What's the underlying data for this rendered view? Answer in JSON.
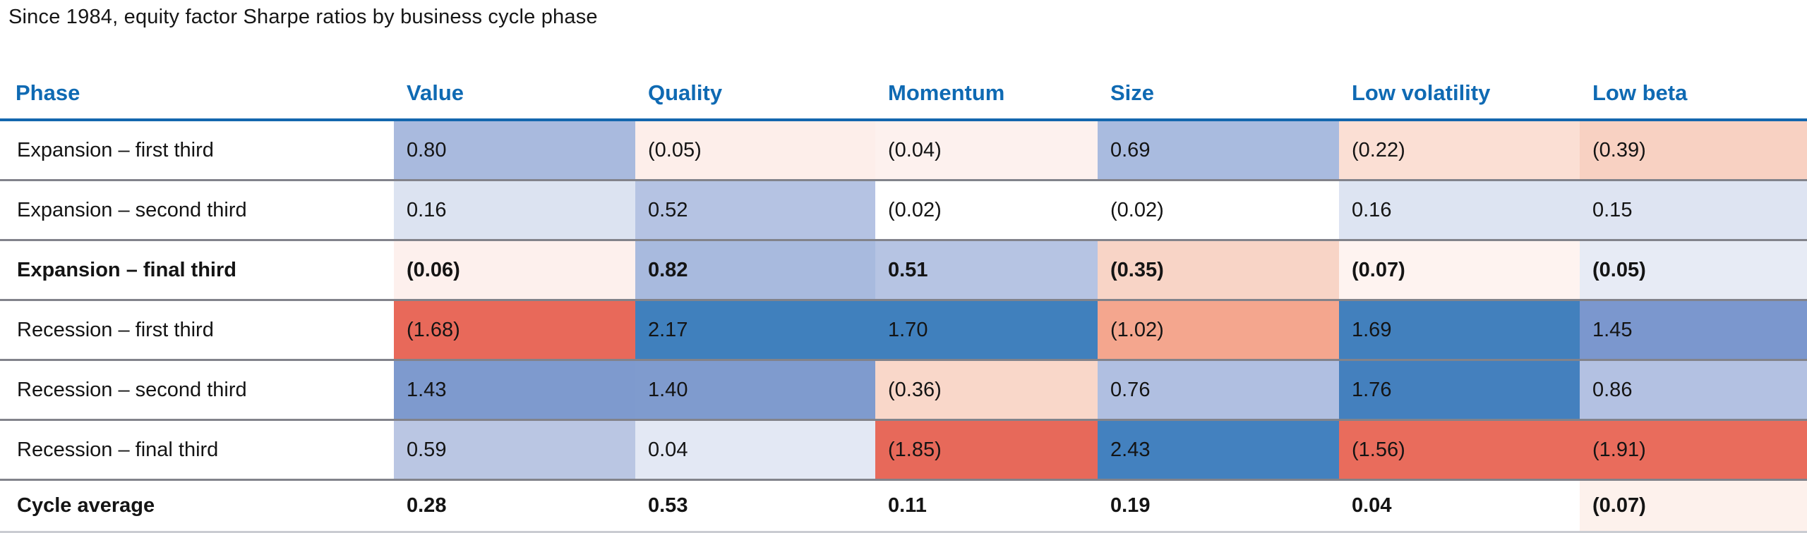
{
  "title": "Since 1984, equity factor Sharpe ratios by business cycle phase",
  "colors": {
    "header_text": "#0f6ab3",
    "header_rule": "#1467ae",
    "row_rule": "#82838b",
    "bottom_rule": "#caccd2",
    "strong_blue": "#4080bd",
    "strong_red": "#e8695a",
    "text": "#141414"
  },
  "table": {
    "columns": [
      "Phase",
      "Value",
      "Quality",
      "Momentum",
      "Size",
      "Low volatility",
      "Low beta"
    ],
    "rows": [
      {
        "label": "Expansion – first third",
        "bold": false,
        "cells": [
          {
            "text": "0.80",
            "bg": "#a9bade"
          },
          {
            "text": "(0.05)",
            "bg": "#fdeeea"
          },
          {
            "text": "(0.04)",
            "bg": "#fdf1ee"
          },
          {
            "text": "0.69",
            "bg": "#a9bbdf"
          },
          {
            "text": "(0.22)",
            "bg": "#fbdfd4"
          },
          {
            "text": "(0.39)",
            "bg": "#f8d1c2"
          }
        ]
      },
      {
        "label": "Expansion – second third",
        "bold": false,
        "cells": [
          {
            "text": "0.16",
            "bg": "#dce3f1"
          },
          {
            "text": "0.52",
            "bg": "#b5c3e3"
          },
          {
            "text": "(0.02)",
            "bg": "#ffffff"
          },
          {
            "text": "(0.02)",
            "bg": "#ffffff"
          },
          {
            "text": "0.16",
            "bg": "#dde4f2"
          },
          {
            "text": "0.15",
            "bg": "#dee4f2"
          }
        ]
      },
      {
        "label": "Expansion – final third",
        "bold": true,
        "cells": [
          {
            "text": "(0.06)",
            "bg": "#fdf0ed"
          },
          {
            "text": "0.82",
            "bg": "#a8bade"
          },
          {
            "text": "0.51",
            "bg": "#b6c4e3"
          },
          {
            "text": "(0.35)",
            "bg": "#f8d4c6"
          },
          {
            "text": "(0.07)",
            "bg": "#fef3f0"
          },
          {
            "text": "(0.05)",
            "bg": "#e7ebf5"
          }
        ]
      },
      {
        "label": "Recession – first third",
        "bold": false,
        "cells": [
          {
            "text": "(1.68)",
            "bg": "#e8695a"
          },
          {
            "text": "2.17",
            "bg": "#4080bd"
          },
          {
            "text": "1.70",
            "bg": "#4080bd"
          },
          {
            "text": "(1.02)",
            "bg": "#f4a68e"
          },
          {
            "text": "1.69",
            "bg": "#4280bd"
          },
          {
            "text": "1.45",
            "bg": "#7b97ce"
          }
        ]
      },
      {
        "label": "Recession – second third",
        "bold": false,
        "cells": [
          {
            "text": "1.43",
            "bg": "#7e9ace"
          },
          {
            "text": "1.40",
            "bg": "#7f9bce"
          },
          {
            "text": "(0.36)",
            "bg": "#f9d7c9"
          },
          {
            "text": "0.76",
            "bg": "#b0bfe1"
          },
          {
            "text": "1.76",
            "bg": "#4480be"
          },
          {
            "text": "0.86",
            "bg": "#b3c1e2"
          }
        ]
      },
      {
        "label": "Recession – final third",
        "bold": false,
        "cells": [
          {
            "text": "0.59",
            "bg": "#bac6e3"
          },
          {
            "text": "0.04",
            "bg": "#e3e8f4"
          },
          {
            "text": "(1.85)",
            "bg": "#e7695a"
          },
          {
            "text": "2.43",
            "bg": "#4381bf"
          },
          {
            "text": "(1.56)",
            "bg": "#e96c5c"
          },
          {
            "text": "(1.91)",
            "bg": "#e96c5c"
          }
        ]
      },
      {
        "label": "Cycle average",
        "bold": true,
        "cells": [
          {
            "text": "0.28",
            "bg": "#ffffff"
          },
          {
            "text": "0.53",
            "bg": "#ffffff"
          },
          {
            "text": "0.11",
            "bg": "#ffffff"
          },
          {
            "text": "0.19",
            "bg": "#ffffff"
          },
          {
            "text": "0.04",
            "bg": "#ffffff"
          },
          {
            "text": "(0.07)",
            "bg": "#fdf1ec"
          }
        ]
      }
    ]
  },
  "chart_data": {
    "type": "heatmap",
    "title": "Since 1984, equity factor Sharpe ratios by business cycle phase",
    "row_label_header": "Phase",
    "columns": [
      "Value",
      "Quality",
      "Momentum",
      "Size",
      "Low volatility",
      "Low beta"
    ],
    "rows": [
      "Expansion – first third",
      "Expansion – second third",
      "Expansion – final third",
      "Recession – first third",
      "Recession – second third",
      "Recession – final third",
      "Cycle average"
    ],
    "values": [
      [
        0.8,
        -0.05,
        -0.04,
        0.69,
        -0.22,
        -0.39
      ],
      [
        0.16,
        0.52,
        -0.02,
        -0.02,
        0.16,
        0.15
      ],
      [
        -0.06,
        0.82,
        0.51,
        -0.35,
        -0.07,
        -0.05
      ],
      [
        -1.68,
        2.17,
        1.7,
        -1.02,
        1.69,
        1.45
      ],
      [
        1.43,
        1.4,
        -0.36,
        0.76,
        1.76,
        0.86
      ],
      [
        0.59,
        0.04,
        -1.85,
        2.43,
        -1.56,
        -1.91
      ],
      [
        0.28,
        0.53,
        0.11,
        0.19,
        0.04,
        -0.07
      ]
    ],
    "negative_format": "parentheses",
    "colorscale": "red for negative, white near zero, blue for positive",
    "bold_rows": [
      "Expansion – final third",
      "Cycle average"
    ],
    "legend_position": "none",
    "grid": "horizontal rules between rows"
  }
}
